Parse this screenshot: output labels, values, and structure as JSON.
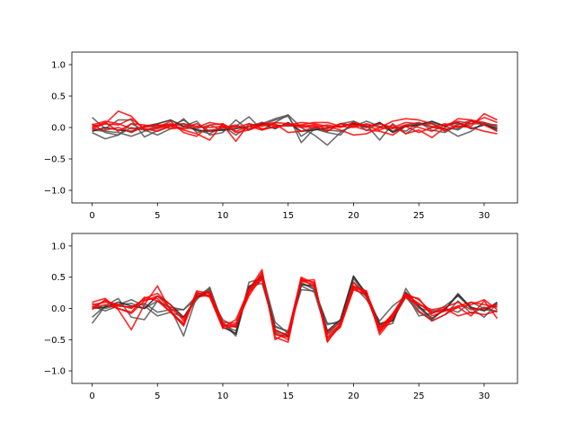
{
  "chart_data": [
    {
      "type": "line",
      "title": "",
      "xlabel": "",
      "ylabel": "",
      "xlim": [
        -1.55,
        32.55
      ],
      "ylim": [
        -1.2,
        1.2
      ],
      "xticks": [
        0,
        5,
        10,
        15,
        20,
        25,
        30
      ],
      "yticks": [
        -1.0,
        -0.5,
        0.0,
        0.5,
        1.0
      ],
      "ytick_labels": [
        "−1.0",
        "−0.5",
        "0.0",
        "0.5",
        "1.0"
      ],
      "grid": false,
      "x": [
        0,
        1,
        2,
        3,
        4,
        5,
        6,
        7,
        8,
        9,
        10,
        11,
        12,
        13,
        14,
        15,
        16,
        17,
        18,
        19,
        20,
        21,
        22,
        23,
        24,
        25,
        26,
        27,
        28,
        29,
        30,
        31
      ],
      "series": [
        {
          "color": "#555555",
          "values": [
            0.16,
            -0.02,
            0.12,
            0.12,
            -0.15,
            -0.05,
            0.02,
            0.12,
            -0.02,
            0.04,
            -0.05,
            0.02,
            0.17,
            -0.04,
            0.08,
            0.2,
            -0.24,
            -0.02,
            -0.08,
            -0.12,
            0.1,
            -0.05,
            0.08,
            -0.06,
            0.02,
            0.06,
            0.08,
            0.02,
            -0.04,
            0.1,
            0.06,
            0.0
          ]
        },
        {
          "color": "#555555",
          "values": [
            -0.08,
            -0.18,
            -0.12,
            0.06,
            -0.04,
            -0.12,
            -0.02,
            0.14,
            -0.08,
            -0.04,
            -0.02,
            0.02,
            -0.02,
            0.06,
            0.14,
            0.2,
            0.0,
            -0.12,
            -0.28,
            -0.08,
            0.06,
            0.04,
            -0.2,
            0.06,
            -0.1,
            0.04,
            0.06,
            -0.02,
            -0.14,
            -0.06,
            0.08,
            -0.04
          ]
        },
        {
          "color": "#555555",
          "values": [
            0.06,
            -0.08,
            -0.12,
            0.0,
            -0.04,
            0.02,
            0.06,
            0.02,
            0.1,
            -0.12,
            -0.08,
            0.12,
            -0.04,
            0.04,
            0.12,
            0.18,
            -0.14,
            0.0,
            -0.04,
            -0.06,
            0.02,
            0.1,
            0.02,
            -0.06,
            0.04,
            0.08,
            -0.04,
            -0.08,
            0.04,
            0.12,
            0.06,
            -0.06
          ]
        },
        {
          "color": "#555555",
          "values": [
            -0.04,
            -0.06,
            -0.08,
            -0.14,
            -0.06,
            0.0,
            0.04,
            0.06,
            -0.04,
            -0.1,
            0.02,
            -0.12,
            0.02,
            0.08,
            0.04,
            0.02,
            0.04,
            -0.02,
            -0.06,
            0.06,
            0.1,
            0.02,
            0.06,
            0.0,
            -0.06,
            0.08,
            0.0,
            -0.02,
            -0.02,
            0.06,
            0.06,
            0.04
          ]
        },
        {
          "color": "#222222",
          "values": [
            -0.06,
            0.0,
            -0.04,
            -0.06,
            0.02,
            0.06,
            0.12,
            0.02,
            -0.04,
            -0.06,
            -0.04,
            -0.02,
            0.02,
            0.06,
            -0.02,
            0.08,
            -0.06,
            -0.04,
            0.0,
            0.02,
            0.06,
            0.0,
            0.08,
            -0.08,
            0.02,
            0.04,
            0.1,
            0.02,
            0.08,
            -0.02,
            0.04,
            -0.02
          ]
        },
        {
          "color": "#ff0000",
          "values": [
            -0.02,
            0.06,
            0.04,
            0.14,
            -0.02,
            -0.06,
            0.02,
            -0.04,
            -0.1,
            -0.2,
            0.06,
            -0.08,
            -0.04,
            0.08,
            0.02,
            0.04,
            0.08,
            0.06,
            0.02,
            -0.04,
            -0.12,
            -0.1,
            0.0,
            0.1,
            0.14,
            0.12,
            0.06,
            -0.06,
            0.06,
            0.02,
            0.22,
            0.12
          ]
        },
        {
          "color": "#ff0000",
          "values": [
            0.04,
            0.1,
            0.06,
            -0.02,
            0.0,
            0.04,
            0.04,
            0.06,
            0.02,
            0.0,
            0.02,
            0.0,
            0.06,
            -0.02,
            0.0,
            0.04,
            0.04,
            0.08,
            0.08,
            0.02,
            0.0,
            0.06,
            0.0,
            -0.02,
            0.04,
            0.0,
            -0.06,
            0.04,
            0.1,
            0.06,
            0.16,
            0.08
          ]
        },
        {
          "color": "#ff0000",
          "values": [
            0.02,
            0.06,
            0.26,
            0.18,
            -0.04,
            -0.02,
            0.04,
            -0.02,
            0.0,
            0.08,
            0.04,
            -0.22,
            0.06,
            0.02,
            0.06,
            -0.08,
            -0.06,
            0.0,
            0.04,
            0.0,
            0.08,
            0.02,
            -0.04,
            0.04,
            -0.1,
            -0.04,
            -0.16,
            0.0,
            0.14,
            0.12,
            0.08,
            0.02
          ]
        },
        {
          "color": "#ff0000",
          "values": [
            0.0,
            0.08,
            -0.06,
            0.06,
            0.04,
            0.0,
            0.1,
            -0.08,
            -0.14,
            0.04,
            0.06,
            -0.06,
            0.02,
            -0.04,
            0.02,
            0.04,
            0.0,
            0.02,
            -0.06,
            0.06,
            0.02,
            -0.04,
            -0.06,
            -0.12,
            0.02,
            -0.08,
            0.0,
            0.06,
            0.0,
            0.1,
            0.04,
            -0.06
          ]
        },
        {
          "color": "#ff0000",
          "values": [
            -0.02,
            -0.04,
            0.0,
            -0.08,
            0.02,
            0.04,
            -0.02,
            0.0,
            0.06,
            -0.06,
            0.0,
            0.04,
            -0.04,
            0.04,
            0.08,
            0.06,
            0.02,
            0.04,
            -0.02,
            0.06,
            0.04,
            0.02,
            0.06,
            0.0,
            0.08,
            0.06,
            0.02,
            -0.04,
            0.02,
            0.0,
            -0.06,
            -0.1
          ]
        }
      ]
    },
    {
      "type": "line",
      "title": "",
      "xlabel": "",
      "ylabel": "",
      "xlim": [
        -1.55,
        32.55
      ],
      "ylim": [
        -1.2,
        1.2
      ],
      "xticks": [
        0,
        5,
        10,
        15,
        20,
        25,
        30
      ],
      "yticks": [
        -1.0,
        -0.5,
        0.0,
        0.5,
        1.0
      ],
      "ytick_labels": [
        "−1.0",
        "−0.5",
        "0.0",
        "0.5",
        "1.0"
      ],
      "grid": false,
      "x": [
        0,
        1,
        2,
        3,
        4,
        5,
        6,
        7,
        8,
        9,
        10,
        11,
        12,
        13,
        14,
        15,
        16,
        17,
        18,
        19,
        20,
        21,
        22,
        23,
        24,
        25,
        26,
        27,
        28,
        29,
        30,
        31
      ],
      "series": [
        {
          "color": "#555555",
          "values": [
            -0.24,
            0.04,
            0.06,
            0.08,
            0.0,
            0.12,
            0.02,
            -0.02,
            0.16,
            0.3,
            -0.22,
            -0.42,
            0.42,
            0.48,
            -0.28,
            -0.38,
            0.3,
            0.28,
            -0.26,
            -0.2,
            0.48,
            0.18,
            -0.3,
            -0.24,
            0.32,
            0.0,
            -0.04,
            -0.02,
            0.24,
            0.0,
            -0.02,
            -0.04
          ]
        },
        {
          "color": "#555555",
          "values": [
            -0.14,
            0.04,
            0.16,
            -0.14,
            -0.18,
            0.12,
            0.0,
            -0.44,
            0.2,
            0.32,
            -0.24,
            -0.44,
            0.36,
            0.4,
            -0.3,
            -0.36,
            0.4,
            0.32,
            -0.38,
            -0.22,
            0.42,
            0.2,
            -0.3,
            -0.12,
            0.24,
            -0.12,
            -0.08,
            0.04,
            0.2,
            0.0,
            -0.14,
            0.08
          ]
        },
        {
          "color": "#555555",
          "values": [
            0.08,
            0.0,
            0.06,
            0.14,
            0.04,
            -0.12,
            -0.06,
            -0.14,
            0.14,
            0.34,
            -0.26,
            -0.36,
            0.3,
            0.48,
            -0.38,
            -0.46,
            0.42,
            0.3,
            -0.24,
            -0.24,
            0.5,
            0.24,
            -0.24,
            -0.18,
            0.18,
            -0.06,
            -0.18,
            0.0,
            -0.06,
            0.1,
            0.0,
            0.04
          ]
        },
        {
          "color": "#555555",
          "values": [
            0.04,
            -0.04,
            0.04,
            0.02,
            0.08,
            -0.06,
            -0.02,
            -0.02,
            0.2,
            0.2,
            -0.18,
            -0.3,
            0.28,
            0.56,
            -0.22,
            -0.4,
            0.36,
            0.26,
            -0.42,
            -0.26,
            0.36,
            0.14,
            -0.2,
            0.04,
            0.2,
            0.02,
            -0.2,
            -0.1,
            0.12,
            -0.08,
            0.02,
            -0.06
          ]
        },
        {
          "color": "#222222",
          "values": [
            0.0,
            0.02,
            0.1,
            0.04,
            0.0,
            0.2,
            0.06,
            -0.14,
            0.18,
            0.26,
            -0.3,
            -0.4,
            0.34,
            0.52,
            -0.34,
            -0.44,
            0.38,
            0.36,
            -0.36,
            -0.18,
            0.52,
            0.22,
            -0.26,
            -0.2,
            0.26,
            0.04,
            -0.16,
            -0.02,
            0.22,
            0.02,
            -0.04,
            0.1
          ]
        },
        {
          "color": "#ff0000",
          "values": [
            -0.02,
            0.14,
            0.0,
            -0.06,
            0.18,
            0.12,
            -0.06,
            -0.28,
            0.24,
            0.2,
            -0.3,
            -0.18,
            0.3,
            0.62,
            -0.5,
            -0.38,
            0.5,
            0.4,
            -0.52,
            -0.28,
            0.3,
            0.22,
            -0.38,
            -0.14,
            0.24,
            -0.04,
            -0.2,
            -0.1,
            0.02,
            -0.12,
            0.12,
            -0.16
          ]
        },
        {
          "color": "#ff0000",
          "values": [
            0.1,
            0.16,
            -0.02,
            -0.34,
            0.06,
            0.36,
            -0.04,
            -0.26,
            0.26,
            0.18,
            -0.32,
            -0.28,
            0.24,
            0.58,
            -0.46,
            -0.54,
            0.44,
            0.46,
            -0.54,
            -0.24,
            0.36,
            0.28,
            -0.42,
            -0.16,
            0.2,
            0.16,
            -0.12,
            -0.04,
            0.02,
            0.06,
            0.14,
            -0.02
          ]
        },
        {
          "color": "#ff0000",
          "values": [
            0.02,
            0.12,
            0.06,
            0.0,
            0.16,
            0.24,
            0.06,
            -0.2,
            0.22,
            0.28,
            -0.28,
            -0.26,
            0.2,
            0.52,
            -0.42,
            -0.46,
            0.44,
            0.38,
            -0.46,
            -0.26,
            0.42,
            0.18,
            -0.34,
            -0.08,
            0.24,
            0.14,
            -0.06,
            -0.04,
            0.04,
            0.1,
            0.06,
            0.02
          ]
        },
        {
          "color": "#ff0000",
          "values": [
            0.0,
            0.06,
            0.0,
            -0.08,
            0.12,
            0.2,
            0.0,
            -0.16,
            0.18,
            0.22,
            -0.26,
            -0.3,
            0.26,
            0.46,
            -0.36,
            -0.42,
            0.48,
            0.34,
            -0.4,
            -0.22,
            0.34,
            0.26,
            -0.3,
            -0.1,
            0.18,
            0.06,
            -0.02,
            0.02,
            0.1,
            -0.02,
            0.0,
            0.06
          ]
        },
        {
          "color": "#ff0000",
          "values": [
            0.06,
            0.1,
            0.04,
            0.02,
            0.14,
            0.16,
            -0.06,
            -0.24,
            0.28,
            0.24,
            -0.22,
            -0.24,
            0.32,
            0.5,
            -0.4,
            -0.5,
            0.46,
            0.42,
            -0.48,
            -0.3,
            0.32,
            0.2,
            -0.36,
            -0.12,
            0.22,
            0.08,
            -0.08,
            0.0,
            -0.12,
            -0.06,
            -0.1,
            -0.04
          ]
        }
      ]
    }
  ]
}
